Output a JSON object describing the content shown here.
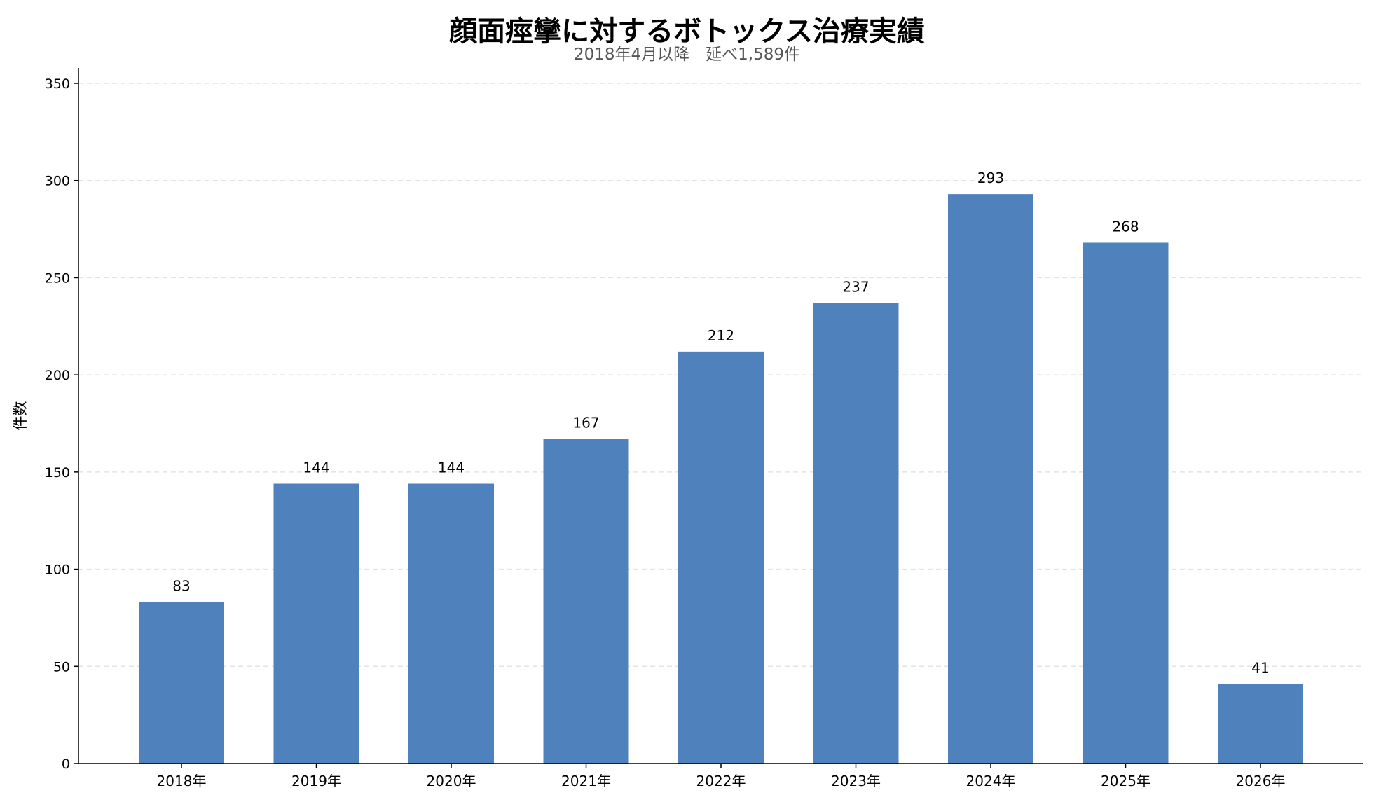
{
  "chart_data": {
    "type": "bar",
    "title": "顔面痙攣に対するボトックス治療実績",
    "subtitle": "2018年4月以降　延べ1,589件",
    "xlabel": "",
    "ylabel": "件数",
    "categories": [
      "2018年",
      "2019年",
      "2020年",
      "2021年",
      "2022年",
      "2023年",
      "2024年",
      "2025年",
      "2026年"
    ],
    "values": [
      83,
      144,
      144,
      167,
      212,
      237,
      293,
      268,
      41
    ],
    "ylim": [
      0,
      357
    ],
    "yticks": [
      0,
      50,
      100,
      150,
      200,
      250,
      300,
      350
    ],
    "grid": "horizontal dashed",
    "legend": "none",
    "bar_color": "#4f81bd",
    "data_labels": true
  }
}
